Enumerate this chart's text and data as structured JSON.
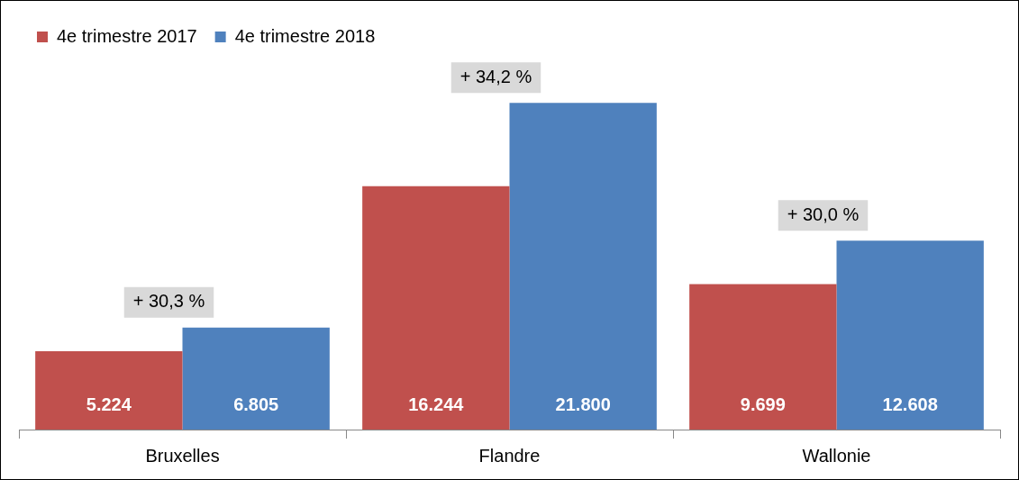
{
  "chart_data": {
    "type": "bar",
    "categories": [
      "Bruxelles",
      "Flandre",
      "Wallonie"
    ],
    "series": [
      {
        "name": "4e trimestre 2017",
        "color": "#c0504d",
        "values": [
          5224,
          16244,
          9699
        ],
        "value_labels": [
          "5.224",
          "16.244",
          "9.699"
        ]
      },
      {
        "name": "4e trimestre 2018",
        "color": "#4f81bd",
        "values": [
          6805,
          21800,
          12608
        ],
        "value_labels": [
          "6.805",
          "21.800",
          "12.608"
        ]
      }
    ],
    "annotations": [
      {
        "text": "+ 30,3 %",
        "x": "Bruxelles",
        "y": 6805
      },
      {
        "text": "+ 34,2 %",
        "x": "Flandre",
        "y": 21800
      },
      {
        "text": "+ 30,0 %",
        "x": "Wallonie",
        "y": 12608
      }
    ],
    "legend": "top left",
    "grid": false
  }
}
